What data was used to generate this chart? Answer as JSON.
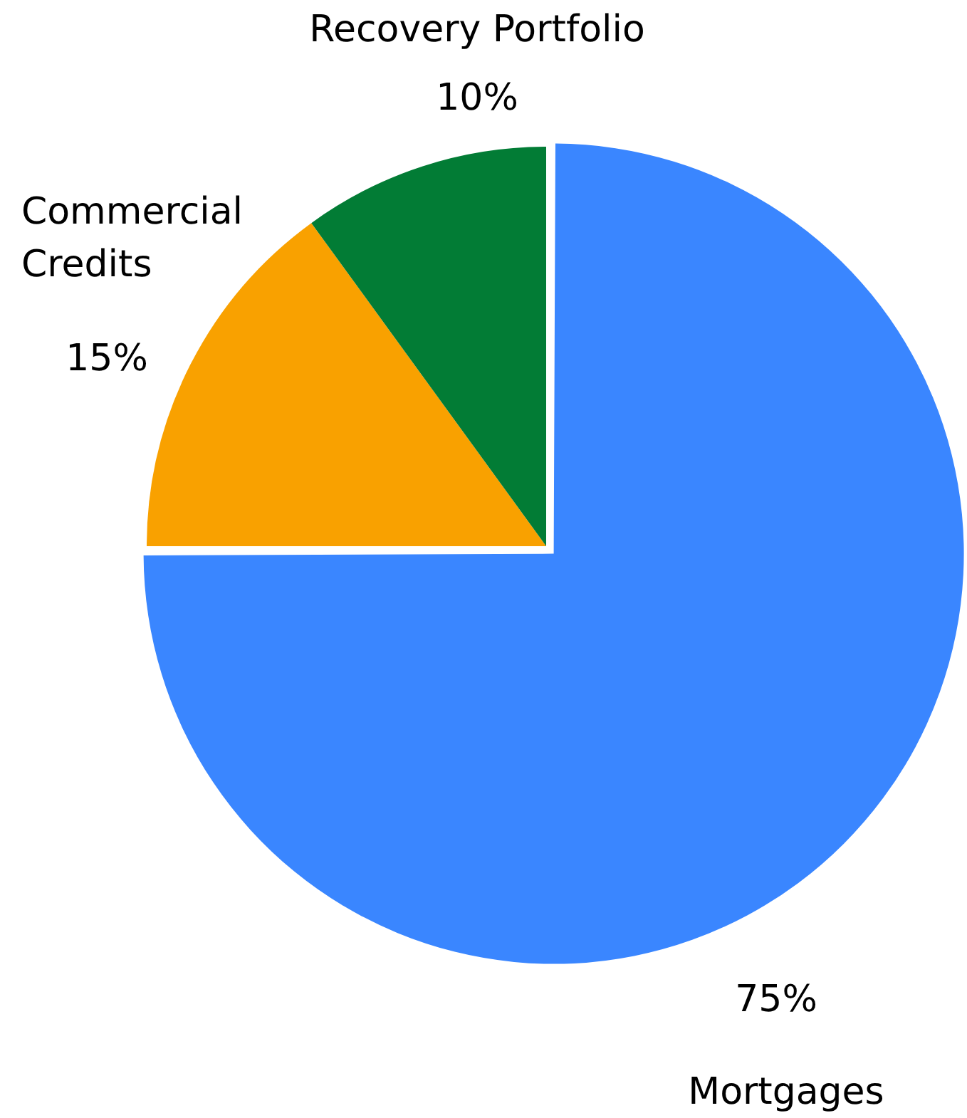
{
  "chart_data": {
    "type": "pie",
    "categories": [
      "Mortgages",
      "Commercial Credits",
      "Recovery Portfolio"
    ],
    "values": [
      75,
      15,
      10
    ],
    "colors": [
      "#3a86ff",
      "#f9a100",
      "#027c35"
    ],
    "value_labels": [
      "75%",
      "15%",
      "10%"
    ],
    "legend": false
  }
}
